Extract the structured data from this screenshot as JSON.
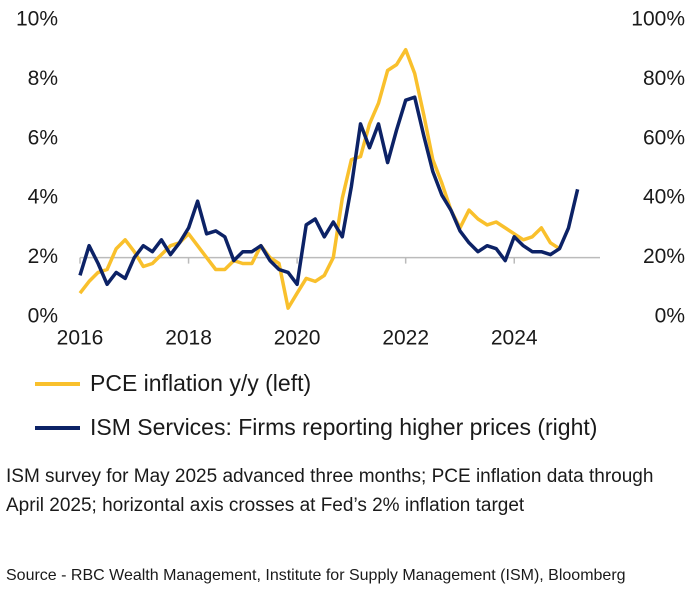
{
  "chart_data": {
    "type": "line",
    "x": [
      2016,
      2016.167,
      2016.333,
      2016.5,
      2016.667,
      2016.833,
      2017,
      2017.167,
      2017.333,
      2017.5,
      2017.667,
      2017.833,
      2018,
      2018.167,
      2018.333,
      2018.5,
      2018.667,
      2018.833,
      2019,
      2019.167,
      2019.333,
      2019.5,
      2019.667,
      2019.833,
      2020,
      2020.167,
      2020.333,
      2020.5,
      2020.667,
      2020.833,
      2021,
      2021.167,
      2021.333,
      2021.5,
      2021.667,
      2021.833,
      2022,
      2022.167,
      2022.333,
      2022.5,
      2022.667,
      2022.833,
      2023,
      2023.167,
      2023.333,
      2023.5,
      2023.667,
      2023.833,
      2024,
      2024.167,
      2024.333,
      2024.5,
      2024.667,
      2024.833,
      2025,
      2025.167
    ],
    "series": [
      {
        "name": "PCE inflation y/y (left)",
        "color": "#f9c02c",
        "axis": "y",
        "values": [
          0.8,
          1.2,
          1.5,
          1.6,
          2.3,
          2.6,
          2.2,
          1.7,
          1.8,
          2.1,
          2.4,
          2.5,
          2.8,
          2.4,
          2.0,
          1.6,
          1.6,
          1.9,
          1.8,
          1.8,
          2.4,
          2.0,
          1.8,
          0.3,
          0.8,
          1.3,
          1.2,
          1.4,
          2.0,
          4.0,
          5.3,
          5.4,
          6.5,
          7.2,
          8.3,
          8.5,
          9.0,
          8.2,
          6.8,
          5.3,
          4.5,
          3.6,
          3.0,
          3.6,
          3.3,
          3.1,
          3.2,
          3.0,
          2.8,
          2.6,
          2.7,
          3.0,
          2.5,
          2.3,
          null,
          null
        ]
      },
      {
        "name": "ISM Services: Firms reporting higher prices (right)",
        "color": "#0c2266",
        "axis": "y2",
        "values": [
          14,
          24,
          18,
          11,
          15,
          13,
          20,
          24,
          22,
          26,
          21,
          25,
          30,
          39,
          28,
          29,
          27,
          19,
          22,
          22,
          24,
          19,
          16,
          15,
          11,
          31,
          33,
          27,
          32,
          27,
          44,
          65,
          57,
          65,
          52,
          63,
          73,
          74,
          61,
          49,
          41,
          36,
          29,
          25,
          22,
          24,
          23,
          19,
          27,
          24,
          22,
          22,
          21,
          23,
          30,
          43
        ]
      }
    ],
    "xlim": [
      2016,
      2025.58
    ],
    "xticks": [
      2016,
      2018,
      2020,
      2022,
      2024
    ],
    "ylim": [
      0,
      10
    ],
    "yticks": [
      {
        "value": 0,
        "label": "0%"
      },
      {
        "value": 2,
        "label": "2%"
      },
      {
        "value": 4,
        "label": "4%"
      },
      {
        "value": 6,
        "label": "6%"
      },
      {
        "value": 8,
        "label": "8%"
      },
      {
        "value": 10,
        "label": "10%"
      }
    ],
    "y2lim": [
      0,
      100
    ],
    "y2ticks": [
      {
        "value": 0,
        "label": "0%"
      },
      {
        "value": 20,
        "label": "20%"
      },
      {
        "value": 40,
        "label": "40%"
      },
      {
        "value": 60,
        "label": "60%"
      },
      {
        "value": 80,
        "label": "80%"
      },
      {
        "value": 100,
        "label": "100%"
      }
    ],
    "xaxis_crosses": 2,
    "grid": false,
    "note": "ISM survey for May 2025 advanced three months; PCE inflation data through April 2025; horizontal axis crosses at Fed’s 2% inflation target",
    "source": "Source - RBC Wealth Management, Institute for Supply Management (ISM), Bloomberg"
  }
}
